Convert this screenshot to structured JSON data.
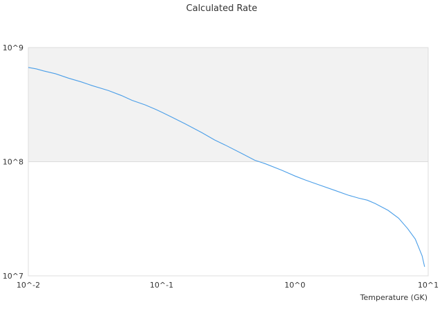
{
  "chart_data": {
    "type": "line",
    "title": "Calculated Rate",
    "xlabel": "Temperature (GK)",
    "ylabel": "",
    "x_scale": "log",
    "y_scale": "log",
    "xlim": [
      0.01,
      10
    ],
    "ylim": [
      10000000,
      1000000000
    ],
    "x_ticks": [
      {
        "value": 0.01,
        "label": "10^-2"
      },
      {
        "value": 0.1,
        "label": "10^-1"
      },
      {
        "value": 1,
        "label": "10^0"
      },
      {
        "value": 10,
        "label": "10^1"
      }
    ],
    "y_ticks": [
      {
        "value": 10000000,
        "label": "10^7"
      },
      {
        "value": 100000000,
        "label": "10^8"
      },
      {
        "value": 1000000000,
        "label": "10^9"
      }
    ],
    "shaded_band": {
      "from": 100000000,
      "to": 1000000000,
      "color": "#f2f2f2"
    },
    "grid": false,
    "legend": "none",
    "line_color": "#4a9ee8",
    "series": [
      {
        "x": [
          0.01,
          0.0115,
          0.013,
          0.016,
          0.02,
          0.025,
          0.03,
          0.04,
          0.05,
          0.06,
          0.075,
          0.09,
          0.1,
          0.12,
          0.15,
          0.2,
          0.25,
          0.3,
          0.4,
          0.5,
          0.6,
          0.8,
          1.0,
          1.2,
          1.5,
          2.0,
          2.5,
          3.0,
          3.5,
          4.0,
          5.0,
          6.0,
          7.0,
          8.0,
          9.0,
          9.4
        ],
        "y": [
          670000000,
          650000000,
          625000000,
          590000000,
          540000000,
          500000000,
          465000000,
          420000000,
          380000000,
          345000000,
          315000000,
          288000000,
          272000000,
          245000000,
          215000000,
          180000000,
          155000000,
          140000000,
          118000000,
          103000000,
          96000000,
          84000000,
          75000000,
          69000000,
          63000000,
          56000000,
          51000000,
          48000000,
          46000000,
          43000000,
          37500000,
          32000000,
          26000000,
          21000000,
          15000000,
          12000000
        ]
      }
    ]
  }
}
